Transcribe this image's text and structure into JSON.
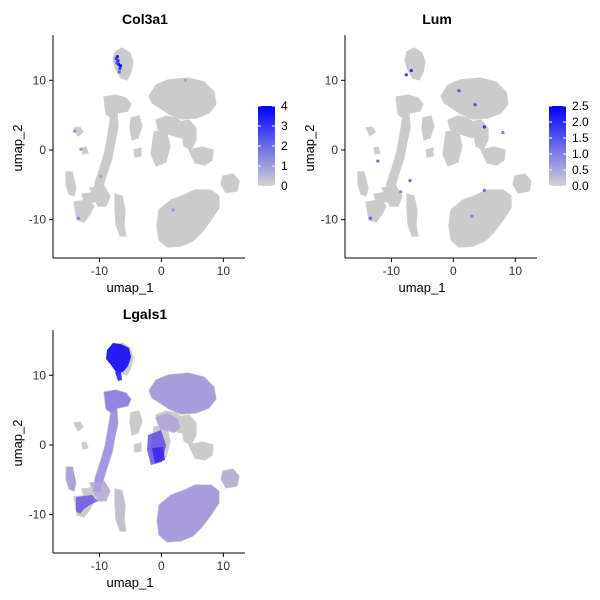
{
  "chart_data": [
    {
      "type": "scatter",
      "title": "Col3a1",
      "xlabel": "umap_1",
      "ylabel": "umap_2",
      "xlim": [
        -17.5,
        13.5
      ],
      "ylim": [
        -15.5,
        16.5
      ],
      "xticks": [
        -10,
        0,
        10
      ],
      "yticks": [
        -10,
        0,
        10
      ],
      "xtick_labels": [
        "-10",
        "0",
        "10"
      ],
      "ytick_labels": [
        "-10",
        "0",
        "10"
      ],
      "colorbar": {
        "min": 0,
        "max": 4,
        "ticks": [
          0,
          1,
          2,
          3,
          4
        ],
        "tick_labels": [
          "0",
          "1",
          "2",
          "3",
          "4"
        ],
        "low_color": "#d3d3d3",
        "high_color": "#0000ff"
      },
      "grid": false,
      "legend_position": "right",
      "highlights": [
        {
          "x": -7.0,
          "y": 12.8,
          "value": 3.2
        },
        {
          "x": -6.9,
          "y": 12.3,
          "value": 3.6
        },
        {
          "x": -6.7,
          "y": 11.7,
          "value": 3.0
        },
        {
          "x": -7.3,
          "y": 13.1,
          "value": 2.8
        },
        {
          "x": -6.6,
          "y": 12.1,
          "value": 3.9
        },
        {
          "x": -7.2,
          "y": 12.5,
          "value": 2.5
        },
        {
          "x": -6.8,
          "y": 11.2,
          "value": 2.2
        },
        {
          "x": -7.1,
          "y": 13.4,
          "value": 3.4
        },
        {
          "x": -14.0,
          "y": 2.7,
          "value": 1.4
        },
        {
          "x": -13.0,
          "y": 0.1,
          "value": 1.1
        },
        {
          "x": -9.8,
          "y": -3.8,
          "value": 1.0
        },
        {
          "x": -13.4,
          "y": -9.8,
          "value": 1.5
        },
        {
          "x": 1.9,
          "y": -8.6,
          "value": 1.2
        },
        {
          "x": 3.9,
          "y": 10.0,
          "value": 1.0
        }
      ]
    },
    {
      "type": "scatter",
      "title": "Lum",
      "xlabel": "umap_1",
      "ylabel": "umap_2",
      "xlim": [
        -17.5,
        13.5
      ],
      "ylim": [
        -15.5,
        16.5
      ],
      "xticks": [
        -10,
        0,
        10
      ],
      "yticks": [
        -10,
        0,
        10
      ],
      "xtick_labels": [
        "-10",
        "0",
        "10"
      ],
      "ytick_labels": [
        "-10",
        "0",
        "10"
      ],
      "colorbar": {
        "min": 0,
        "max": 2.5,
        "ticks": [
          0,
          0.5,
          1,
          1.5,
          2,
          2.5
        ],
        "tick_labels": [
          "0.0",
          "0.5",
          "1.0",
          "1.5",
          "2.0",
          "2.5"
        ],
        "low_color": "#d3d3d3",
        "high_color": "#0000ff"
      },
      "grid": false,
      "legend_position": "right",
      "highlights": [
        {
          "x": -6.8,
          "y": 11.4,
          "value": 2.0
        },
        {
          "x": -7.6,
          "y": 10.8,
          "value": 1.7
        },
        {
          "x": 0.9,
          "y": 8.5,
          "value": 1.5
        },
        {
          "x": 3.5,
          "y": 6.5,
          "value": 1.6
        },
        {
          "x": 5.0,
          "y": 3.3,
          "value": 2.0
        },
        {
          "x": -12.2,
          "y": -1.6,
          "value": 1.2
        },
        {
          "x": -7.0,
          "y": -4.4,
          "value": 1.3
        },
        {
          "x": -8.5,
          "y": -6.0,
          "value": 1.0
        },
        {
          "x": -13.4,
          "y": -9.8,
          "value": 1.4
        },
        {
          "x": 5.0,
          "y": -5.8,
          "value": 1.2
        },
        {
          "x": 3.0,
          "y": -9.5,
          "value": 1.0
        },
        {
          "x": 8.0,
          "y": 2.5,
          "value": 1.1
        }
      ]
    },
    {
      "type": "scatter",
      "title": "Lgals1",
      "xlabel": "umap_1",
      "ylabel": "umap_2",
      "xlim": [
        -17.5,
        13.5
      ],
      "ylim": [
        -15.5,
        16.5
      ],
      "xticks": [
        -10,
        0,
        10
      ],
      "yticks": [
        -10,
        0,
        10
      ],
      "xtick_labels": [
        "-10",
        "0",
        "10"
      ],
      "ytick_labels": [
        "-10",
        "0",
        "10"
      ],
      "colorbar": null,
      "grid": false,
      "expression_pattern": "strongest in top-left cluster, moderate across most clusters"
    }
  ]
}
